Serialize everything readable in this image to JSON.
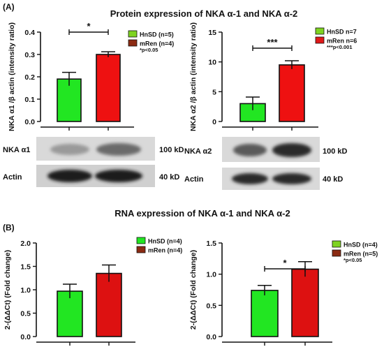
{
  "figure": {
    "panel_a_label": "(A)",
    "panel_b_label": "(B)",
    "protein_title": "Protein expression of NKA α-1 and NKA α-2",
    "rna_title": "RNA expression of NKA α-1 and NKA α-2"
  },
  "colors": {
    "hnsd": "#22e622",
    "mren": "#ee1111",
    "hnsd_legend": "#7ed321",
    "mren_legend": "#8b2a12",
    "mren_legend_red": "#e01818"
  },
  "chart_data": [
    {
      "id": "chart1",
      "type": "bar",
      "categories": [
        "HnSD",
        "mRen"
      ],
      "values": [
        0.19,
        0.3
      ],
      "errors": [
        0.03,
        0.012
      ],
      "colors": [
        "#22e622",
        "#ee1111"
      ],
      "ylabel": "NKA α1 /β actin (intensity ratio)",
      "ylim": [
        0,
        0.4
      ],
      "yticks": [
        "0.0",
        "0.1",
        "0.2",
        "0.3",
        "0.4"
      ],
      "significance": "*",
      "legend": [
        "HnSD (n=5)",
        "mRen (n=4)"
      ],
      "pnote": "*p<0.05"
    },
    {
      "id": "chart2",
      "type": "bar",
      "categories": [
        "HnSD",
        "mRen"
      ],
      "values": [
        3.0,
        9.5
      ],
      "errors": [
        1.1,
        0.7
      ],
      "colors": [
        "#22e622",
        "#ee1111"
      ],
      "ylabel": "NKA α2 /β actin (intensity ratio)",
      "ylim": [
        0,
        15
      ],
      "yticks": [
        "0",
        "5",
        "10",
        "15"
      ],
      "significance": "***",
      "legend": [
        "HnSD n=7",
        "mRen n=6"
      ],
      "pnote": "***p<0.001"
    },
    {
      "id": "chart3",
      "type": "bar",
      "categories": [
        "HnSD",
        "mRen"
      ],
      "values": [
        0.97,
        1.35
      ],
      "errors": [
        0.15,
        0.18
      ],
      "colors": [
        "#22e622",
        "#dd1111"
      ],
      "ylabel": "2-(ΔΔCt) (Fold change)",
      "ylim": [
        0,
        2.0
      ],
      "yticks": [
        "0.0",
        "0.5",
        "1.0",
        "1.5",
        "2.0"
      ],
      "significance": "",
      "legend": [
        "HnSD (n=4)",
        "mRen (n=4)"
      ],
      "pnote": ""
    },
    {
      "id": "chart4",
      "type": "bar",
      "categories": [
        "HnSD",
        "mRen"
      ],
      "values": [
        0.74,
        1.08
      ],
      "errors": [
        0.08,
        0.12
      ],
      "colors": [
        "#22e622",
        "#dd1111"
      ],
      "ylabel": "2-(ΔΔCt) (Fold change)",
      "ylim": [
        0,
        1.5
      ],
      "yticks": [
        "0.0",
        "0.5",
        "1.0",
        "1.5"
      ],
      "significance": "*",
      "legend": [
        "HnSD (n=4)",
        "mRen (n=5)"
      ],
      "pnote": "*p<0.05"
    }
  ],
  "blots": {
    "left": {
      "row1_label": "NKA α1",
      "row1_size": "100 kD",
      "row2_label": "Actin",
      "row2_size": "40 kD"
    },
    "right": {
      "row1_label": "NKA α2",
      "row1_size": "100 kD",
      "row2_label": "Actin",
      "row2_size": "40 kD"
    }
  }
}
